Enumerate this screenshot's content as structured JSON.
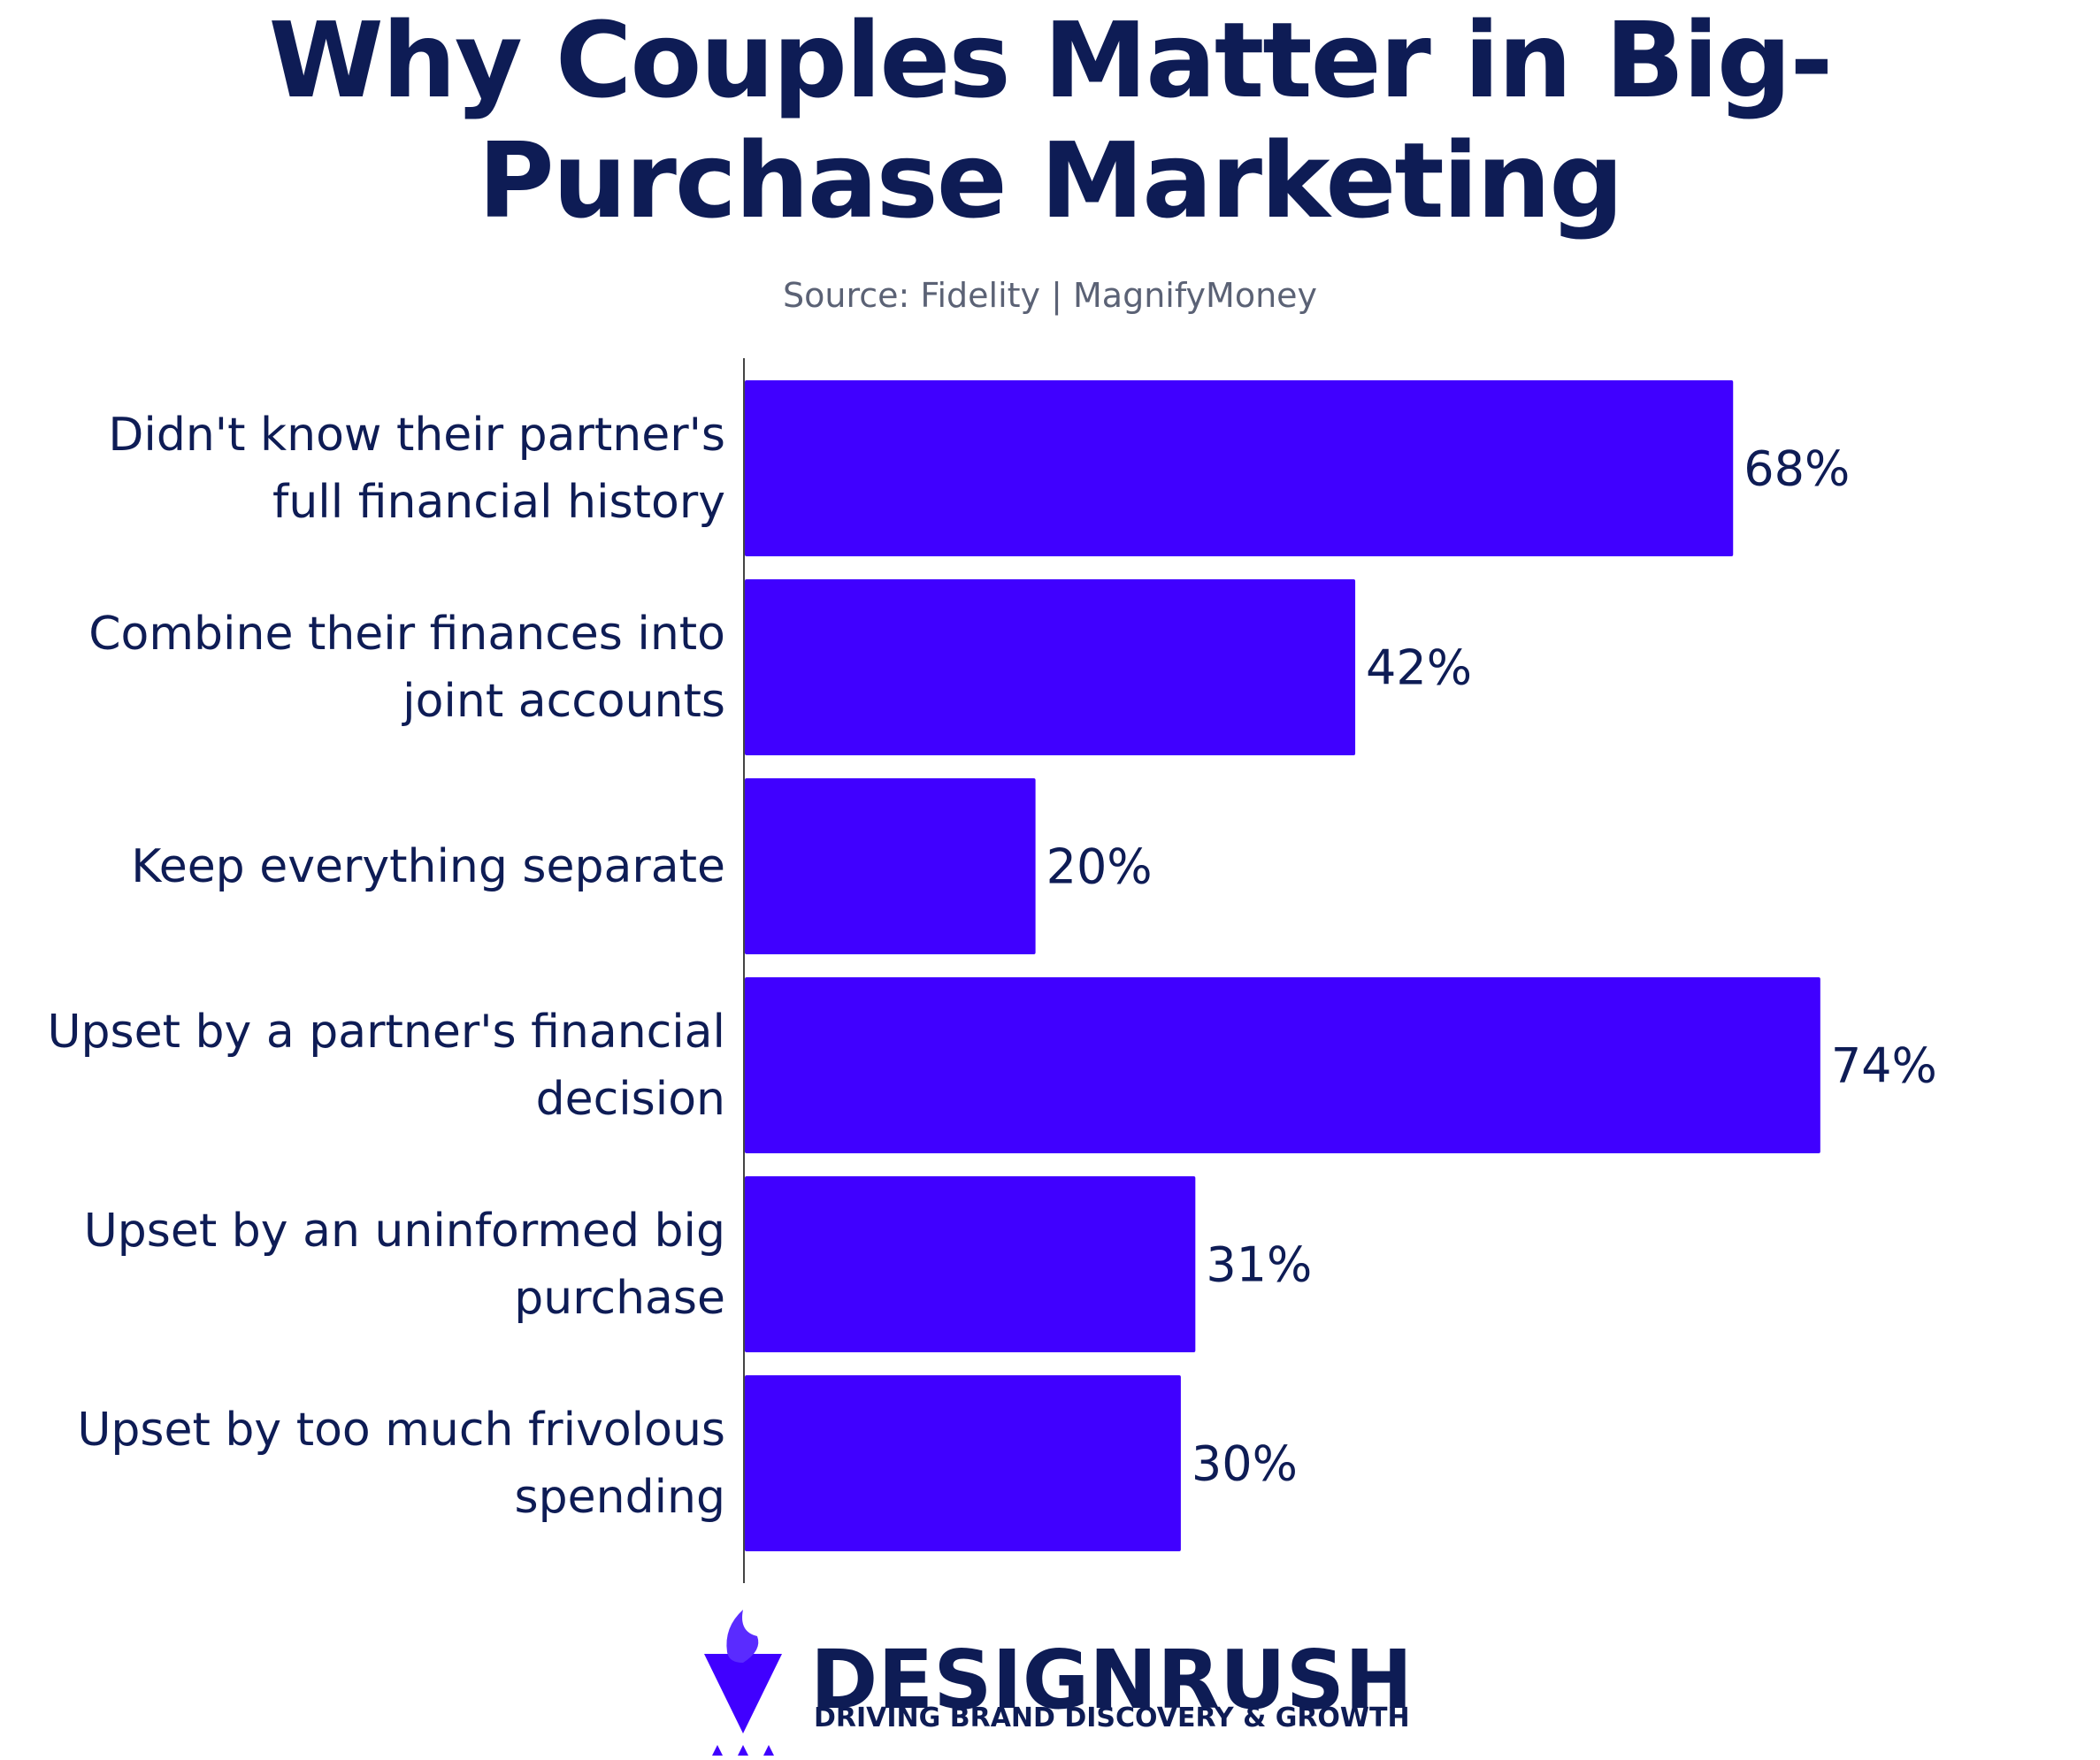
{
  "chart_data": {
    "type": "bar",
    "orientation": "horizontal",
    "title": "Why Couples Matter in Big-Purchase Marketing",
    "subtitle": "Source: Fidelity | MagnifyMoney",
    "categories": [
      "Didn't know their partner's full financial history",
      "Combine their finances into joint accounts",
      "Keep everything separate",
      "Upset by a partner's financial decision",
      "Upset by an uninformed big purchase",
      "Upset by too much frivolous spending"
    ],
    "values": [
      68,
      42,
      20,
      74,
      31,
      30
    ],
    "value_labels": [
      "68%",
      "42%",
      "20%",
      "74%",
      "31%",
      "30%"
    ],
    "color": "#4000ff"
  },
  "logo": {
    "name": "DESIGNRUSH",
    "tagline": "DRIVING BRAND DISCOVERY & GROWTH"
  }
}
